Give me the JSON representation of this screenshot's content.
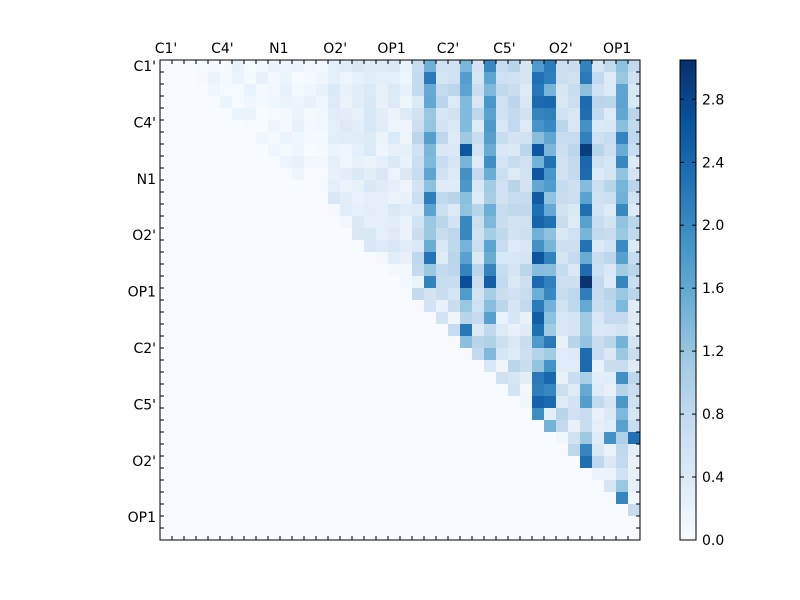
{
  "chart_data": {
    "type": "heatmap",
    "title": "",
    "xlabel": "",
    "ylabel": "",
    "grid": false,
    "colormap": "Blues",
    "colors": {
      "low": "#f7fbff",
      "high": "#08306b"
    },
    "value_range": [
      0,
      3.05
    ],
    "size": [
      40,
      40
    ],
    "x_tick_labels": [
      "C1'",
      "C4'",
      "N1",
      "O2'",
      "OP1",
      "C2'",
      "C5'",
      "O2'",
      "OP1"
    ],
    "y_tick_labels": [
      "C1'",
      "C4'",
      "N1",
      "O2'",
      "OP1",
      "C2'",
      "C5'",
      "O2'",
      "OP1"
    ],
    "label_index_positions": [
      0.5,
      5.2,
      9.9,
      14.6,
      19.3,
      24.0,
      28.7,
      33.4,
      38.1
    ],
    "colorbar": {
      "ticks": [
        "0.0",
        "0.4",
        "0.8",
        "1.2",
        "1.6",
        "2.0",
        "2.4",
        "2.8"
      ],
      "tick_values": [
        0.0,
        0.4,
        0.8,
        1.2,
        1.6,
        2.0,
        2.4,
        2.8
      ]
    },
    "highlight_columns": {
      "22": 1.3,
      "25": 1.2,
      "27": 1.1,
      "31": 1.6,
      "32": 1.4,
      "35": 1.5,
      "38": 1.1
    },
    "values_note_cells": [
      {
        "row": 18,
        "col": 25,
        "value": 2.7
      },
      {
        "row": 18,
        "col": 27,
        "value": 2.5
      },
      {
        "row": 18,
        "col": 31,
        "value": 2.4
      },
      {
        "row": 18,
        "col": 35,
        "value": 3.0
      },
      {
        "row": 7,
        "col": 25,
        "value": 2.6
      },
      {
        "row": 7,
        "col": 31,
        "value": 2.6
      },
      {
        "row": 7,
        "col": 35,
        "value": 2.9
      },
      {
        "row": 1,
        "col": 31,
        "value": 2.3
      },
      {
        "row": 1,
        "col": 35,
        "value": 2.2
      },
      {
        "row": 31,
        "col": 39,
        "value": 2.3
      },
      {
        "row": 31,
        "col": 37,
        "value": 1.9
      }
    ]
  }
}
